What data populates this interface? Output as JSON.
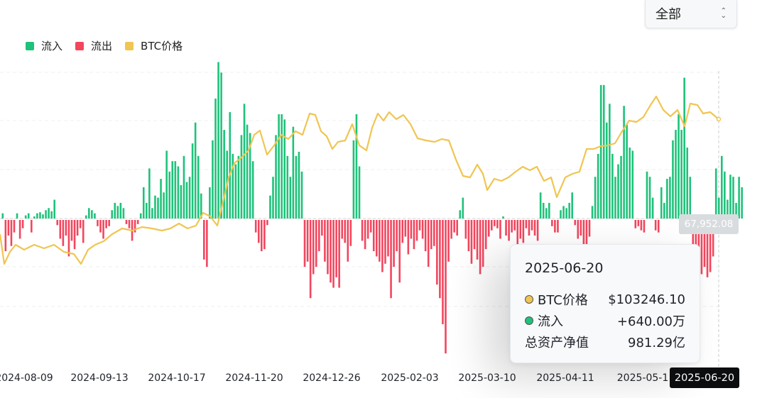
{
  "filter": {
    "selected": "全部",
    "icon": "chevron-updown-icon"
  },
  "legend": [
    {
      "label": "流入",
      "color": "#1ec27a"
    },
    {
      "label": "流出",
      "color": "#f2465e"
    },
    {
      "label": "BTC价格",
      "color": "#f0c552"
    }
  ],
  "tooltip": {
    "date": "2025-06-20",
    "rows": [
      {
        "label": "BTC价格",
        "value": "$103246.10",
        "dot_color": "#f0c552"
      },
      {
        "label": "流入",
        "value": "+640.00万",
        "dot_color": "#1ec27a"
      },
      {
        "label": "总资产净值",
        "value": "981.29亿"
      }
    ]
  },
  "crosshair": {
    "y_value": "67,952.08",
    "x_value": "2025-06-20"
  },
  "chart_data": {
    "type": "bar",
    "title": "",
    "x_ticks": [
      "2024-08-09",
      "2024-09-13",
      "2024-10-17",
      "2024-11-20",
      "2024-12-26",
      "2025-02-03",
      "2025-03-10",
      "2025-04-11",
      "2025-05-1"
    ],
    "series": [
      {
        "name": "流入",
        "color": "#1ec27a"
      },
      {
        "name": "流出",
        "color": "#f2465e"
      },
      {
        "name": "BTC价格",
        "type": "line",
        "color": "#f0c552"
      }
    ],
    "flow_values": [
      5,
      -30,
      -15,
      -25,
      -12,
      5,
      -18,
      -8,
      3,
      5,
      -12,
      2,
      5,
      6,
      4,
      8,
      10,
      7,
      18,
      -5,
      -18,
      -25,
      -15,
      -35,
      -20,
      -28,
      -15,
      -8,
      -22,
      3,
      10,
      8,
      5,
      -6,
      -12,
      -18,
      -8,
      -6,
      8,
      15,
      12,
      15,
      10,
      -4,
      -8,
      -20,
      -12,
      -4,
      5,
      30,
      15,
      48,
      10,
      22,
      20,
      38,
      25,
      65,
      45,
      55,
      55,
      50,
      32,
      60,
      35,
      40,
      72,
      92,
      60,
      24,
      -38,
      -45,
      30,
      75,
      115,
      150,
      140,
      85,
      65,
      102,
      62,
      52,
      60,
      80,
      110,
      90,
      82,
      55,
      -12,
      -22,
      -30,
      -28,
      -5,
      22,
      40,
      80,
      100,
      100,
      95,
      60,
      40,
      88,
      60,
      64,
      45,
      -45,
      -40,
      -75,
      -52,
      -45,
      -30,
      -15,
      -40,
      -52,
      -60,
      -65,
      -55,
      -65,
      -18,
      -22,
      -40,
      -25,
      75,
      100,
      50,
      -20,
      -28,
      -18,
      -12,
      -30,
      -35,
      -40,
      -50,
      -42,
      -35,
      -75,
      -45,
      -30,
      -60,
      -22,
      -16,
      -33,
      -18,
      -28,
      -20,
      -10,
      -18,
      -30,
      -45,
      -28,
      -25,
      -62,
      -75,
      -100,
      -128,
      -40,
      -18,
      -12,
      -15,
      8,
      20,
      -18,
      -30,
      -42,
      -28,
      -38,
      -52,
      -45,
      -28,
      -16,
      -10,
      -6,
      -8,
      -18,
      2,
      -15,
      -20,
      -12,
      -10,
      -25,
      -18,
      -22,
      -8,
      -15,
      -10,
      -15,
      -20,
      25,
      15,
      10,
      15,
      -6,
      -12,
      -12,
      8,
      12,
      10,
      15,
      25,
      -5,
      -18,
      -15,
      -30,
      -28,
      -16,
      12,
      40,
      62,
      128,
      128,
      92,
      110,
      62,
      40,
      52,
      60,
      108,
      90,
      68,
      65,
      -8,
      -6,
      -10,
      -12,
      45,
      40,
      20,
      -10,
      -12,
      30,
      15,
      38,
      40,
      75,
      85,
      100,
      85,
      135,
      68,
      40,
      -30,
      -35,
      -40,
      -52,
      -45,
      -55,
      -50,
      -35,
      48,
      20,
      60,
      45,
      18,
      42,
      40,
      15,
      40,
      30
    ]
  }
}
